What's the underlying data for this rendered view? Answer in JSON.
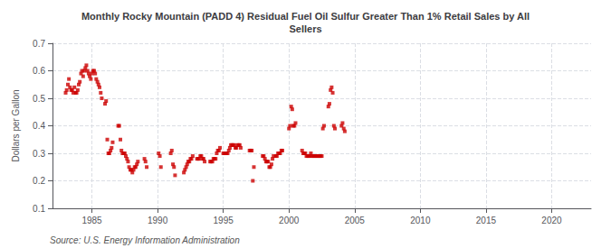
{
  "chart_data": {
    "type": "scatter",
    "title": "Monthly Rocky Mountain (PADD 4) Residual Fuel Oil Sulfur Greater Than 1% Retail Sales by All\nSellers",
    "y_label": "Dollars per Gallon",
    "annotations": [
      "Source: U.S. Energy Information Administration"
    ],
    "color": "#cc0000",
    "marker": "square",
    "grid": true,
    "xlim": [
      1982,
      2023
    ],
    "ylim": [
      0.1,
      0.7
    ],
    "xticks": [
      1985,
      1990,
      1995,
      2000,
      2005,
      2010,
      2015,
      2020
    ],
    "yticks": [
      0.1,
      0.2,
      0.3,
      0.4,
      0.5,
      0.6,
      0.7
    ],
    "x": [
      1983.0,
      1983.08,
      1983.17,
      1983.25,
      1983.33,
      1983.42,
      1983.5,
      1983.58,
      1983.67,
      1983.75,
      1983.83,
      1983.92,
      1984.0,
      1984.08,
      1984.17,
      1984.25,
      1984.33,
      1984.42,
      1984.5,
      1984.58,
      1984.67,
      1984.75,
      1984.83,
      1984.92,
      1985.0,
      1985.08,
      1985.17,
      1985.25,
      1985.33,
      1985.42,
      1985.5,
      1985.58,
      1985.67,
      1985.75,
      1986.0,
      1986.08,
      1986.17,
      1986.25,
      1986.33,
      1986.42,
      1986.5,
      1986.58,
      1987.0,
      1987.08,
      1987.17,
      1987.25,
      1987.33,
      1987.42,
      1987.5,
      1987.58,
      1987.67,
      1987.75,
      1987.83,
      1987.92,
      1988.0,
      1988.08,
      1988.17,
      1988.25,
      1988.33,
      1988.42,
      1988.5,
      1989.0,
      1989.08,
      1989.17,
      1990.08,
      1990.17,
      1990.25,
      1991.0,
      1991.08,
      1991.17,
      1991.25,
      1991.33,
      1992.0,
      1992.08,
      1992.17,
      1992.25,
      1992.33,
      1992.42,
      1992.5,
      1992.58,
      1992.67,
      1993.0,
      1993.08,
      1993.17,
      1993.25,
      1993.33,
      1993.42,
      1993.5,
      1993.58,
      1994.0,
      1994.08,
      1994.17,
      1994.25,
      1994.33,
      1994.42,
      1994.5,
      1994.58,
      1994.67,
      1994.75,
      1995.0,
      1995.08,
      1995.17,
      1995.25,
      1995.33,
      1995.42,
      1995.5,
      1995.58,
      1995.67,
      1995.75,
      1995.83,
      1995.92,
      1996.0,
      1996.08,
      1996.17,
      1996.25,
      1996.33,
      1997.0,
      1997.08,
      1997.17,
      1997.25,
      1997.33,
      1998.0,
      1998.08,
      1998.17,
      1998.25,
      1998.33,
      1998.42,
      1998.5,
      1998.58,
      1998.67,
      1998.75,
      1998.83,
      1999.0,
      1999.08,
      1999.17,
      1999.25,
      1999.33,
      1999.42,
      1999.5,
      2000.0,
      2000.08,
      2000.17,
      2000.25,
      2000.33,
      2000.42,
      2000.5,
      2001.0,
      2001.08,
      2001.17,
      2001.25,
      2001.33,
      2001.42,
      2001.5,
      2001.58,
      2001.67,
      2001.75,
      2001.83,
      2001.92,
      2002.0,
      2002.08,
      2002.17,
      2002.25,
      2002.33,
      2002.42,
      2002.5,
      2002.58,
      2002.67,
      2003.0,
      2003.08,
      2003.17,
      2003.25,
      2003.33,
      2003.42,
      2003.5,
      2004.0,
      2004.08,
      2004.17,
      2004.25
    ],
    "values": [
      0.52,
      0.53,
      0.55,
      0.57,
      0.54,
      0.53,
      0.53,
      0.52,
      0.54,
      0.52,
      0.52,
      0.53,
      0.55,
      0.56,
      0.59,
      0.6,
      0.58,
      0.6,
      0.61,
      0.62,
      0.6,
      0.59,
      0.58,
      0.57,
      0.59,
      0.6,
      0.6,
      0.59,
      0.57,
      0.56,
      0.55,
      0.54,
      0.52,
      0.5,
      0.48,
      0.49,
      0.35,
      0.3,
      0.3,
      0.31,
      0.32,
      0.34,
      0.4,
      0.4,
      0.35,
      0.31,
      0.3,
      0.3,
      0.3,
      0.29,
      0.28,
      0.27,
      0.25,
      0.24,
      0.24,
      0.23,
      0.24,
      0.25,
      0.25,
      0.26,
      0.27,
      0.28,
      0.27,
      0.25,
      0.3,
      0.29,
      0.25,
      0.3,
      0.31,
      0.26,
      0.25,
      0.22,
      0.23,
      0.24,
      0.25,
      0.26,
      0.27,
      0.27,
      0.28,
      0.28,
      0.29,
      0.28,
      0.28,
      0.28,
      0.29,
      0.29,
      0.28,
      0.28,
      0.27,
      0.27,
      0.27,
      0.27,
      0.28,
      0.28,
      0.28,
      0.3,
      0.31,
      0.31,
      0.32,
      0.3,
      0.3,
      0.3,
      0.3,
      0.3,
      0.31,
      0.32,
      0.33,
      0.33,
      0.33,
      0.33,
      0.32,
      0.32,
      0.33,
      0.33,
      0.33,
      0.32,
      0.31,
      0.31,
      0.31,
      0.2,
      0.25,
      0.29,
      0.29,
      0.28,
      0.27,
      0.27,
      0.27,
      0.25,
      0.25,
      0.26,
      0.28,
      0.29,
      0.29,
      0.29,
      0.3,
      0.3,
      0.3,
      0.31,
      0.31,
      0.39,
      0.4,
      0.47,
      0.46,
      0.4,
      0.4,
      0.41,
      0.31,
      0.3,
      0.3,
      0.3,
      0.29,
      0.29,
      0.29,
      0.29,
      0.3,
      0.29,
      0.29,
      0.29,
      0.29,
      0.29,
      0.29,
      0.29,
      0.29,
      0.29,
      0.29,
      0.39,
      0.4,
      0.47,
      0.48,
      0.53,
      0.54,
      0.52,
      0.4,
      0.39,
      0.4,
      0.41,
      0.39,
      0.38
    ]
  }
}
